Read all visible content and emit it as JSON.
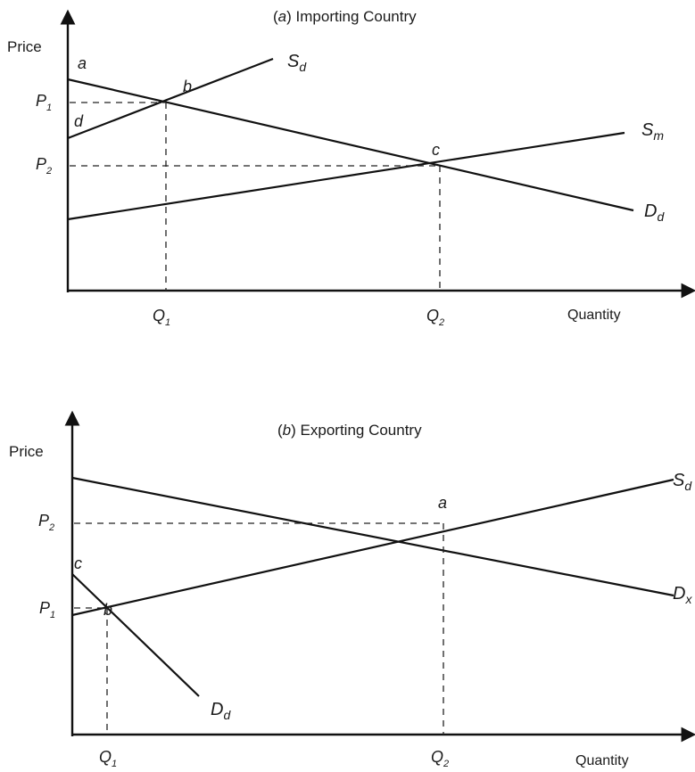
{
  "panel_a": {
    "title_letter": "a",
    "title_text": "Importing Country",
    "y_axis_label": "Price",
    "x_axis_label": "Quantity",
    "price_labels": [
      {
        "base": "P",
        "sub": "1"
      },
      {
        "base": "P",
        "sub": "2"
      }
    ],
    "quantity_labels": [
      {
        "base": "Q",
        "sub": "1"
      },
      {
        "base": "Q",
        "sub": "2"
      }
    ],
    "point_labels": [
      "a",
      "b",
      "c",
      "d"
    ],
    "curve_labels": [
      {
        "base": "S",
        "sub": "d"
      },
      {
        "base": "S",
        "sub": "m"
      },
      {
        "base": "D",
        "sub": "d"
      }
    ]
  },
  "panel_b": {
    "title_letter": "b",
    "title_text": "Exporting Country",
    "y_axis_label": "Price",
    "x_axis_label": "Quantity",
    "price_labels": [
      {
        "base": "P",
        "sub": "2"
      },
      {
        "base": "P",
        "sub": "1"
      }
    ],
    "quantity_labels": [
      {
        "base": "Q",
        "sub": "1"
      },
      {
        "base": "Q",
        "sub": "2"
      }
    ],
    "point_labels": [
      "a",
      "b",
      "c"
    ],
    "curve_labels": [
      {
        "base": "S",
        "sub": "d"
      },
      {
        "base": "D",
        "sub": "x"
      },
      {
        "base": "D",
        "sub": "d"
      }
    ]
  }
}
